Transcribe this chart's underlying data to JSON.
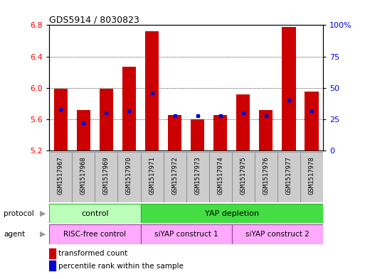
{
  "title": "GDS5914 / 8030823",
  "samples": [
    "GSM1517967",
    "GSM1517968",
    "GSM1517969",
    "GSM1517970",
    "GSM1517971",
    "GSM1517972",
    "GSM1517973",
    "GSM1517974",
    "GSM1517975",
    "GSM1517976",
    "GSM1517977",
    "GSM1517978"
  ],
  "transformed_count": [
    5.99,
    5.72,
    5.99,
    6.27,
    6.72,
    5.65,
    5.6,
    5.65,
    5.92,
    5.72,
    6.78,
    5.95
  ],
  "percentile_rank": [
    33,
    22,
    30,
    32,
    46,
    28,
    28,
    28,
    30,
    28,
    40,
    32
  ],
  "ymin": 5.2,
  "ymax": 6.8,
  "yticks": [
    5.2,
    5.6,
    6.0,
    6.4,
    6.8
  ],
  "right_yticks": [
    0,
    25,
    50,
    75,
    100
  ],
  "bar_color": "#cc0000",
  "dot_color": "#0000cc",
  "xtick_bg_color": "#cccccc",
  "xtick_edge_color": "#888888",
  "protocol_control_color": "#bbffbb",
  "protocol_yap_color": "#44dd44",
  "agent_color": "#ffaaff",
  "protocol_control_label": "control",
  "protocol_yap_label": "YAP depletion",
  "agent_risc_label": "RISC-free control",
  "agent_siyap1_label": "siYAP construct 1",
  "agent_siyap2_label": "siYAP construct 2",
  "control_samples": 4,
  "siyap1_samples": 4,
  "siyap2_samples": 4,
  "legend_count_label": "transformed count",
  "legend_pct_label": "percentile rank within the sample"
}
